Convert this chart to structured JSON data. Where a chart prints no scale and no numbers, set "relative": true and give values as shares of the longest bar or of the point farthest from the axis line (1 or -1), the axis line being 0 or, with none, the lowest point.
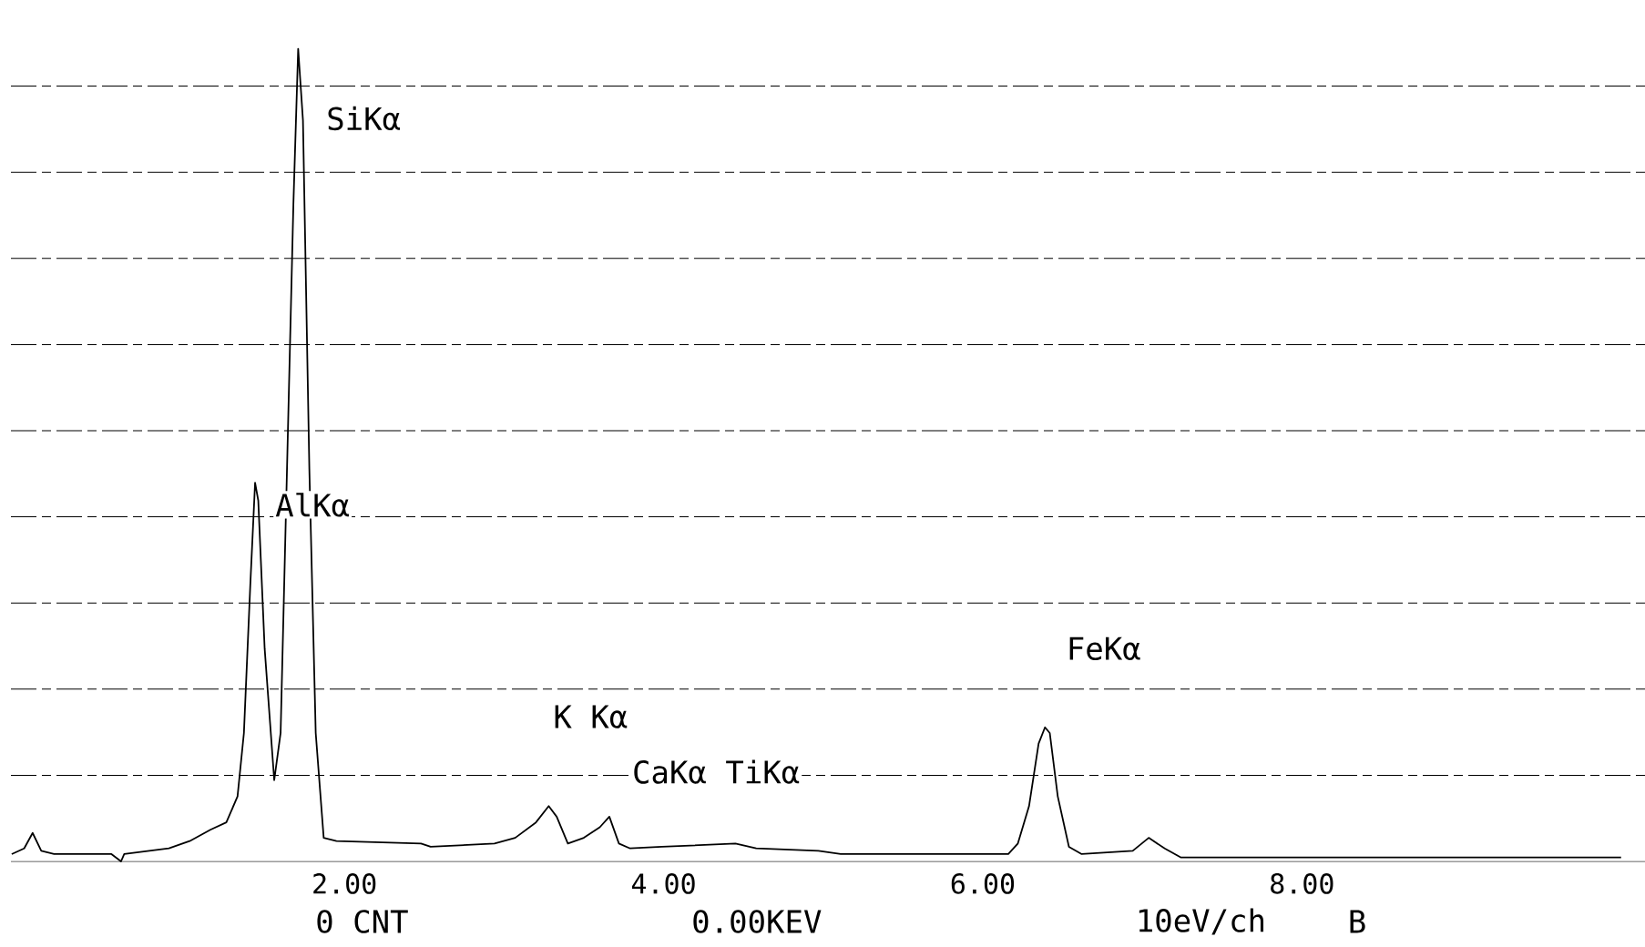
{
  "chart_data": {
    "type": "line",
    "relative": true,
    "color": "#000000",
    "grid": "y",
    "line_style": "solid",
    "marker": "none",
    "xlim": [
      -0.09,
      10.15
    ],
    "xticks": [
      {
        "value": 2,
        "label": "2.00"
      },
      {
        "value": 4,
        "label": "4.00"
      },
      {
        "value": 6,
        "label": "6.00"
      },
      {
        "value": 8,
        "label": "8.00"
      }
    ],
    "x": [
      -0.085,
      -0.007,
      0.046,
      0.1,
      0.18,
      0.54,
      0.6,
      0.62,
      0.9,
      1.03,
      1.16,
      1.26,
      1.33,
      1.37,
      1.41,
      1.44,
      1.46,
      1.5,
      1.56,
      1.6,
      1.64,
      1.68,
      1.71,
      1.74,
      1.78,
      1.82,
      1.87,
      1.95,
      2.48,
      2.54,
      2.94,
      3.07,
      3.2,
      3.28,
      3.33,
      3.4,
      3.5,
      3.6,
      3.66,
      3.72,
      3.79,
      3.99,
      4.45,
      4.58,
      4.97,
      5.11,
      6.16,
      6.22,
      6.29,
      6.35,
      6.39,
      6.42,
      6.47,
      6.54,
      6.62,
      6.94,
      7.04,
      7.14,
      7.24,
      8.06,
      9.05,
      10.0
    ],
    "values": [
      0.009,
      0.016,
      0.035,
      0.013,
      0.009,
      0.009,
      0,
      0.009,
      0.016,
      0.025,
      0.039,
      0.048,
      0.08,
      0.158,
      0.34,
      0.466,
      0.444,
      0.262,
      0.1,
      0.158,
      0.483,
      0.808,
      1.0,
      0.912,
      0.483,
      0.158,
      0.029,
      0.025,
      0.022,
      0.018,
      0.022,
      0.029,
      0.048,
      0.068,
      0.055,
      0.022,
      0.029,
      0.042,
      0.055,
      0.022,
      0.016,
      0.018,
      0.022,
      0.016,
      0.013,
      0.009,
      0.009,
      0.022,
      0.068,
      0.145,
      0.165,
      0.158,
      0.08,
      0.018,
      0.009,
      0.013,
      0.029,
      0.016,
      0.005,
      0.005,
      0.005,
      0.005
    ],
    "annotations": [
      "SiKα",
      "AlKα",
      "FeKα",
      "K Kα",
      "CaKα TiKα",
      "0 CNT",
      "0.00KEV",
      "10eV/ch",
      "B"
    ]
  }
}
